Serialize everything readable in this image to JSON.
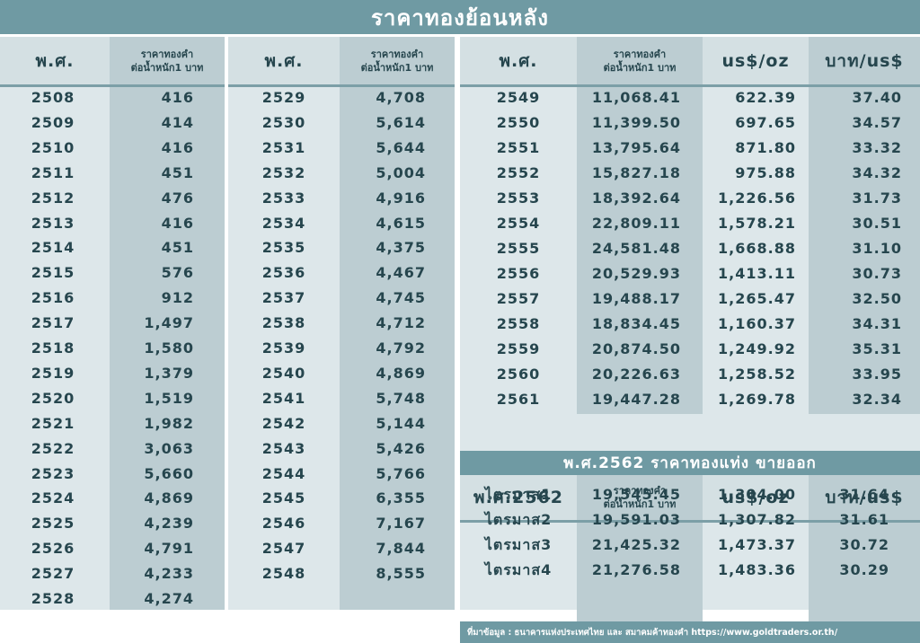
{
  "title": "ราคาทองย้อนหลัง",
  "headers": {
    "year": "พ.ศ.",
    "price_line1": "ราคาทองคำ",
    "price_line2": "ต่อน้ำหนัก1 บาท",
    "usd_oz": "us$/oz",
    "baht_usd": "บาท/us$"
  },
  "table1": [
    [
      "2508",
      "416"
    ],
    [
      "2509",
      "414"
    ],
    [
      "2510",
      "416"
    ],
    [
      "2511",
      "451"
    ],
    [
      "2512",
      "476"
    ],
    [
      "2513",
      "416"
    ],
    [
      "2514",
      "451"
    ],
    [
      "2515",
      "576"
    ],
    [
      "2516",
      "912"
    ],
    [
      "2517",
      "1,497"
    ],
    [
      "2518",
      "1,580"
    ],
    [
      "2519",
      "1,379"
    ],
    [
      "2520",
      "1,519"
    ],
    [
      "2521",
      "1,982"
    ],
    [
      "2522",
      "3,063"
    ],
    [
      "2523",
      "5,660"
    ],
    [
      "2524",
      "4,869"
    ],
    [
      "2525",
      "4,239"
    ],
    [
      "2526",
      "4,791"
    ],
    [
      "2527",
      "4,233"
    ],
    [
      "2528",
      "4,274"
    ]
  ],
  "table2": [
    [
      "2529",
      "4,708"
    ],
    [
      "2530",
      "5,614"
    ],
    [
      "2531",
      "5,644"
    ],
    [
      "2532",
      "5,004"
    ],
    [
      "2533",
      "4,916"
    ],
    [
      "2534",
      "4,615"
    ],
    [
      "2535",
      "4,375"
    ],
    [
      "2536",
      "4,467"
    ],
    [
      "2537",
      "4,745"
    ],
    [
      "2538",
      "4,712"
    ],
    [
      "2539",
      "4,792"
    ],
    [
      "2540",
      "4,869"
    ],
    [
      "2541",
      "5,748"
    ],
    [
      "2542",
      "5,144"
    ],
    [
      "2543",
      "5,426"
    ],
    [
      "2544",
      "5,766"
    ],
    [
      "2545",
      "6,355"
    ],
    [
      "2546",
      "7,167"
    ],
    [
      "2547",
      "7,844"
    ],
    [
      "2548",
      "8,555"
    ]
  ],
  "table3": [
    [
      "2549",
      "11,068.41",
      "622.39",
      "37.40"
    ],
    [
      "2550",
      "11,399.50",
      "697.65",
      "34.57"
    ],
    [
      "2551",
      "13,795.64",
      "871.80",
      "33.32"
    ],
    [
      "2552",
      "15,827.18",
      "975.88",
      "34.32"
    ],
    [
      "2553",
      "18,392.64",
      "1,226.56",
      "31.73"
    ],
    [
      "2554",
      "22,809.11",
      "1,578.21",
      "30.51"
    ],
    [
      "2555",
      "24,581.48",
      "1,668.88",
      "31.10"
    ],
    [
      "2556",
      "20,529.93",
      "1,413.11",
      "30.73"
    ],
    [
      "2557",
      "19,488.17",
      "1,265.47",
      "32.50"
    ],
    [
      "2558",
      "18,834.45",
      "1,160.37",
      "34.31"
    ],
    [
      "2559",
      "20,874.50",
      "1,249.92",
      "35.31"
    ],
    [
      "2560",
      "20,226.63",
      "1,258.52",
      "33.95"
    ],
    [
      "2561",
      "19,447.28",
      "1,269.78",
      "32.34"
    ]
  ],
  "section2562": {
    "title": "พ.ศ.2562 ราคาทองแท่ง ขายออก",
    "year_header": "พ.ศ.2562",
    "rows": [
      [
        "ไตรมาส1",
        "19,545.45",
        "1,304.00",
        "31.64"
      ],
      [
        "ไตรมาส2",
        "19,591.03",
        "1,307.82",
        "31.61"
      ],
      [
        "ไตรมาส3",
        "21,425.32",
        "1,473.37",
        "30.72"
      ],
      [
        "ไตรมาส4",
        "21,276.58",
        "1,483.36",
        "30.29"
      ]
    ]
  },
  "source": "ที่มาข้อมูล : ธนาคารแห่งประเทศไทย และ สมาคมค้าทองคำ https://www.goldtraders.or.th/"
}
